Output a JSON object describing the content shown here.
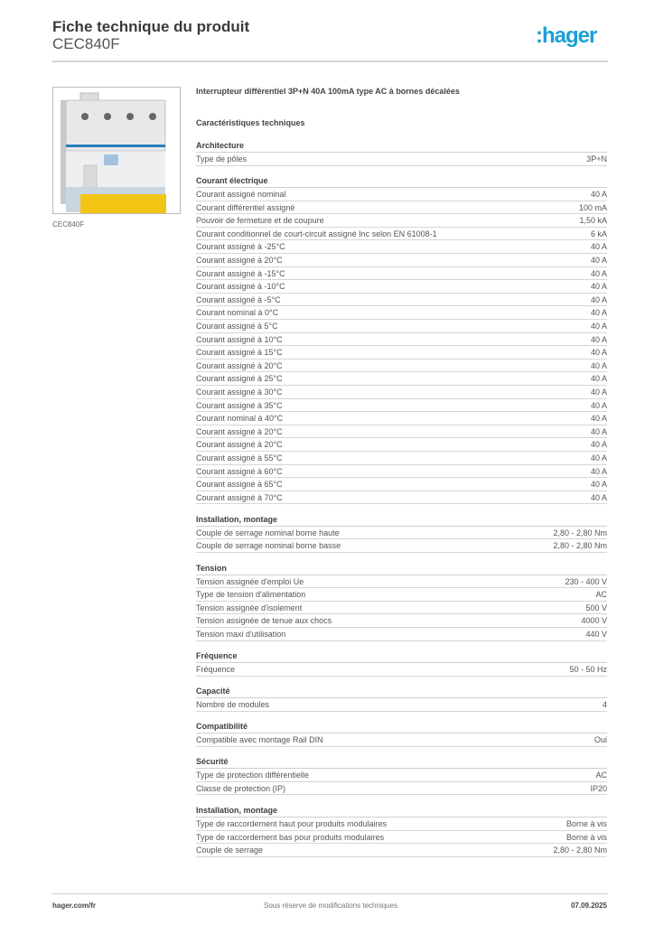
{
  "header": {
    "title": "Fiche technique du produit",
    "reference": "CEC840F",
    "logo_text": ":hager",
    "logo_color": "#1aa0d6"
  },
  "product": {
    "image_caption": "CEC840F",
    "description": "Interrupteur différentiel 3P+N 40A 100mA type AC à bornes décalées",
    "specs_title": "Caractéristiques techniques"
  },
  "sections": [
    {
      "title": "Architecture",
      "rows": [
        [
          "Type de pôles",
          "3P+N"
        ]
      ]
    },
    {
      "title": "Courant électrique",
      "rows": [
        [
          "Courant assigné nominal",
          "40 A"
        ],
        [
          "Courant différentiel assigné",
          "100 mA"
        ],
        [
          "Pouvoir de fermeture et de coupure",
          "1,50 kA"
        ],
        [
          "Courant conditionnel de court-circuit assigné Inc selon EN 61008-1",
          "6 kA"
        ],
        [
          "Courant assigné à -25°C",
          "40 A"
        ],
        [
          "Courant assigné à 20°C",
          "40 A"
        ],
        [
          "Courant assigné à -15°C",
          "40 A"
        ],
        [
          "Courant assigné à -10°C",
          "40 A"
        ],
        [
          "Courant assigné à -5°C",
          "40 A"
        ],
        [
          "Courant nominal à 0°C",
          "40 A"
        ],
        [
          "Courant assigné à 5°C",
          "40 A"
        ],
        [
          "Courant assigné à 10°C",
          "40 A"
        ],
        [
          "Courant assigné à 15°C",
          "40 A"
        ],
        [
          "Courant assigné à 20°C",
          "40 A"
        ],
        [
          "Courant assigné à 25°C",
          "40 A"
        ],
        [
          "Courant assigné à 30°C",
          "40 A"
        ],
        [
          "Courant assigné à 35°C",
          "40 A"
        ],
        [
          "Courant nominal à 40°C",
          "40 A"
        ],
        [
          "Courant assigné à 20°C",
          "40 A"
        ],
        [
          "Courant assigné à 20°C",
          "40 A"
        ],
        [
          "Courant assigné à 55°C",
          "40 A"
        ],
        [
          "Courant assigné à 60°C",
          "40 A"
        ],
        [
          "Courant assigné à 65°C",
          "40 A"
        ],
        [
          "Courant assigné à 70°C",
          "40 A"
        ]
      ]
    },
    {
      "title": "Installation, montage",
      "rows": [
        [
          "Couple de serrage nominal borne haute",
          "2,80 - 2,80 Nm"
        ],
        [
          "Couple de serrage nominal borne basse",
          "2,80 - 2,80 Nm"
        ]
      ]
    },
    {
      "title": "Tension",
      "rows": [
        [
          "Tension assignée d'emploi Ue",
          "230 - 400 V"
        ],
        [
          "Type de tension d'alimentation",
          "AC"
        ],
        [
          "Tension assignée d'isolement",
          "500 V"
        ],
        [
          "Tension assignée de tenue aux chocs",
          "4000 V"
        ],
        [
          "Tension maxi d'utilisation",
          "440 V"
        ]
      ]
    },
    {
      "title": "Fréquence",
      "rows": [
        [
          "Fréquence",
          "50 - 50 Hz"
        ]
      ]
    },
    {
      "title": "Capacité",
      "rows": [
        [
          "Nombre de modules",
          "4"
        ]
      ]
    },
    {
      "title": "Compatibilité",
      "rows": [
        [
          "Compatible avec montage Rail DIN",
          "Oui"
        ]
      ]
    },
    {
      "title": "Sécurité",
      "rows": [
        [
          "Type de protection différentielle",
          "AC"
        ],
        [
          "Classe de protection (IP)",
          "IP20"
        ]
      ]
    },
    {
      "title": "Installation, montage",
      "rows": [
        [
          "Type de raccordement haut pour produits modulaires",
          "Borne à vis"
        ],
        [
          "Type de raccordement bas pour produits modulaires",
          "Borne à vis"
        ],
        [
          "Couple de serrage",
          "2,80 - 2,80 Nm"
        ]
      ]
    }
  ],
  "footer": {
    "website": "hager.com/fr",
    "disclaimer": "Sous réserve de modifications techniques",
    "date": "07.09.2025"
  }
}
